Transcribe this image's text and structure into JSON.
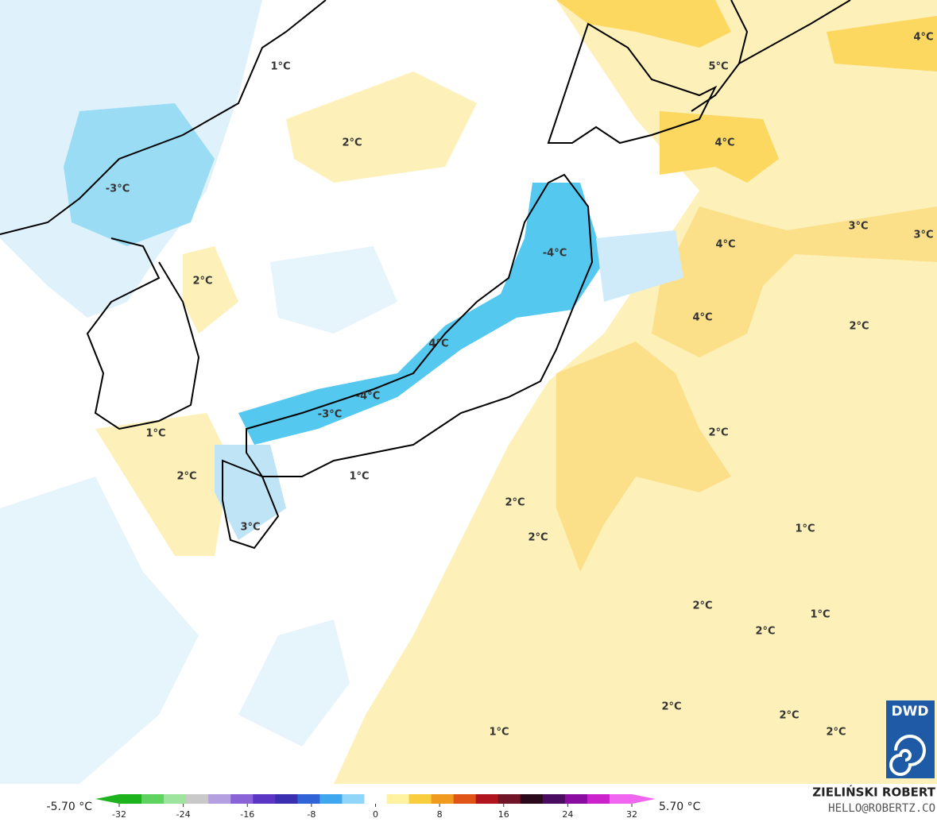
{
  "map_labels": [
    "1°C",
    "2°C",
    "-3°C",
    "2°C",
    "-4°C",
    "4°C",
    "-4°C",
    "-3°C",
    "1°C",
    "2°C",
    "1°C",
    "2°C",
    "3°C",
    "2°C",
    "5°C",
    "4°C",
    "4°C",
    "4°C",
    "3°C",
    "3°C",
    "4°C",
    "2°C",
    "2°C",
    "1°C",
    "2°C",
    "1°C",
    "2°C",
    "2°C",
    "2°C",
    "2°C",
    "1°C"
  ],
  "colorbar": {
    "min_label": "-5.70 °C",
    "max_label": "5.70 °C",
    "ticks": [
      -32,
      -24,
      -16,
      -8,
      0,
      8,
      16,
      24,
      32
    ]
  },
  "credit": {
    "author": "ZIELIŃSKI ROBERT",
    "website": "HELLO@ROBERTZ.CO"
  },
  "logo": "DWD"
}
